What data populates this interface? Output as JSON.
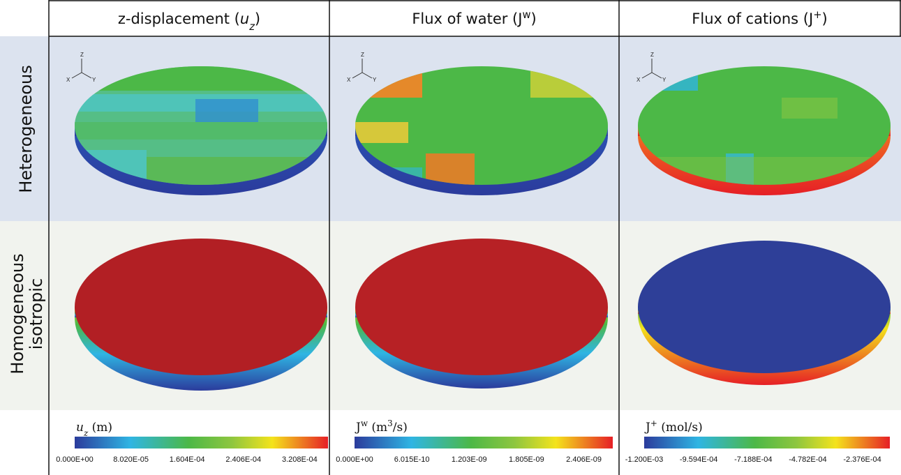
{
  "columns": [
    {
      "pre": "z-displacement (",
      "sym": "u",
      "sub": "z",
      "post": ")"
    },
    {
      "pre": "Flux of water (",
      "sym": "J",
      "sup": "w",
      "post": ")"
    },
    {
      "pre": "Flux of cations (",
      "sym": "J",
      "sup": "+",
      "post": ")"
    }
  ],
  "rows": [
    {
      "lines": [
        "Heterogeneous"
      ]
    },
    {
      "lines": [
        "Homogeneous",
        "isotropic"
      ]
    }
  ],
  "axes_triad": {
    "z": "Z",
    "x": "X",
    "y": "Y"
  },
  "colorbars": [
    {
      "sym": "u",
      "sub": "z",
      "unit": " (m)",
      "ticks": [
        "0.000E+00",
        "8.020E-05",
        "1.604E-04",
        "2.406E-04",
        "3.208E-04"
      ]
    },
    {
      "sym": "J",
      "sup": "w",
      "unit": " (m",
      "unit_sup": "3",
      "unit_post": "/s)",
      "ticks": [
        "0.000E+00",
        "6.015E-10",
        "1.203E-09",
        "1.805E-09",
        "2.406E-09"
      ]
    },
    {
      "sym": "J",
      "sup": "+",
      "unit": " (mol/s)",
      "ticks": [
        "-1.200E-03",
        "-9.594E-04",
        "-7.188E-04",
        "-4.782E-04",
        "-2.376E-04"
      ]
    }
  ]
}
